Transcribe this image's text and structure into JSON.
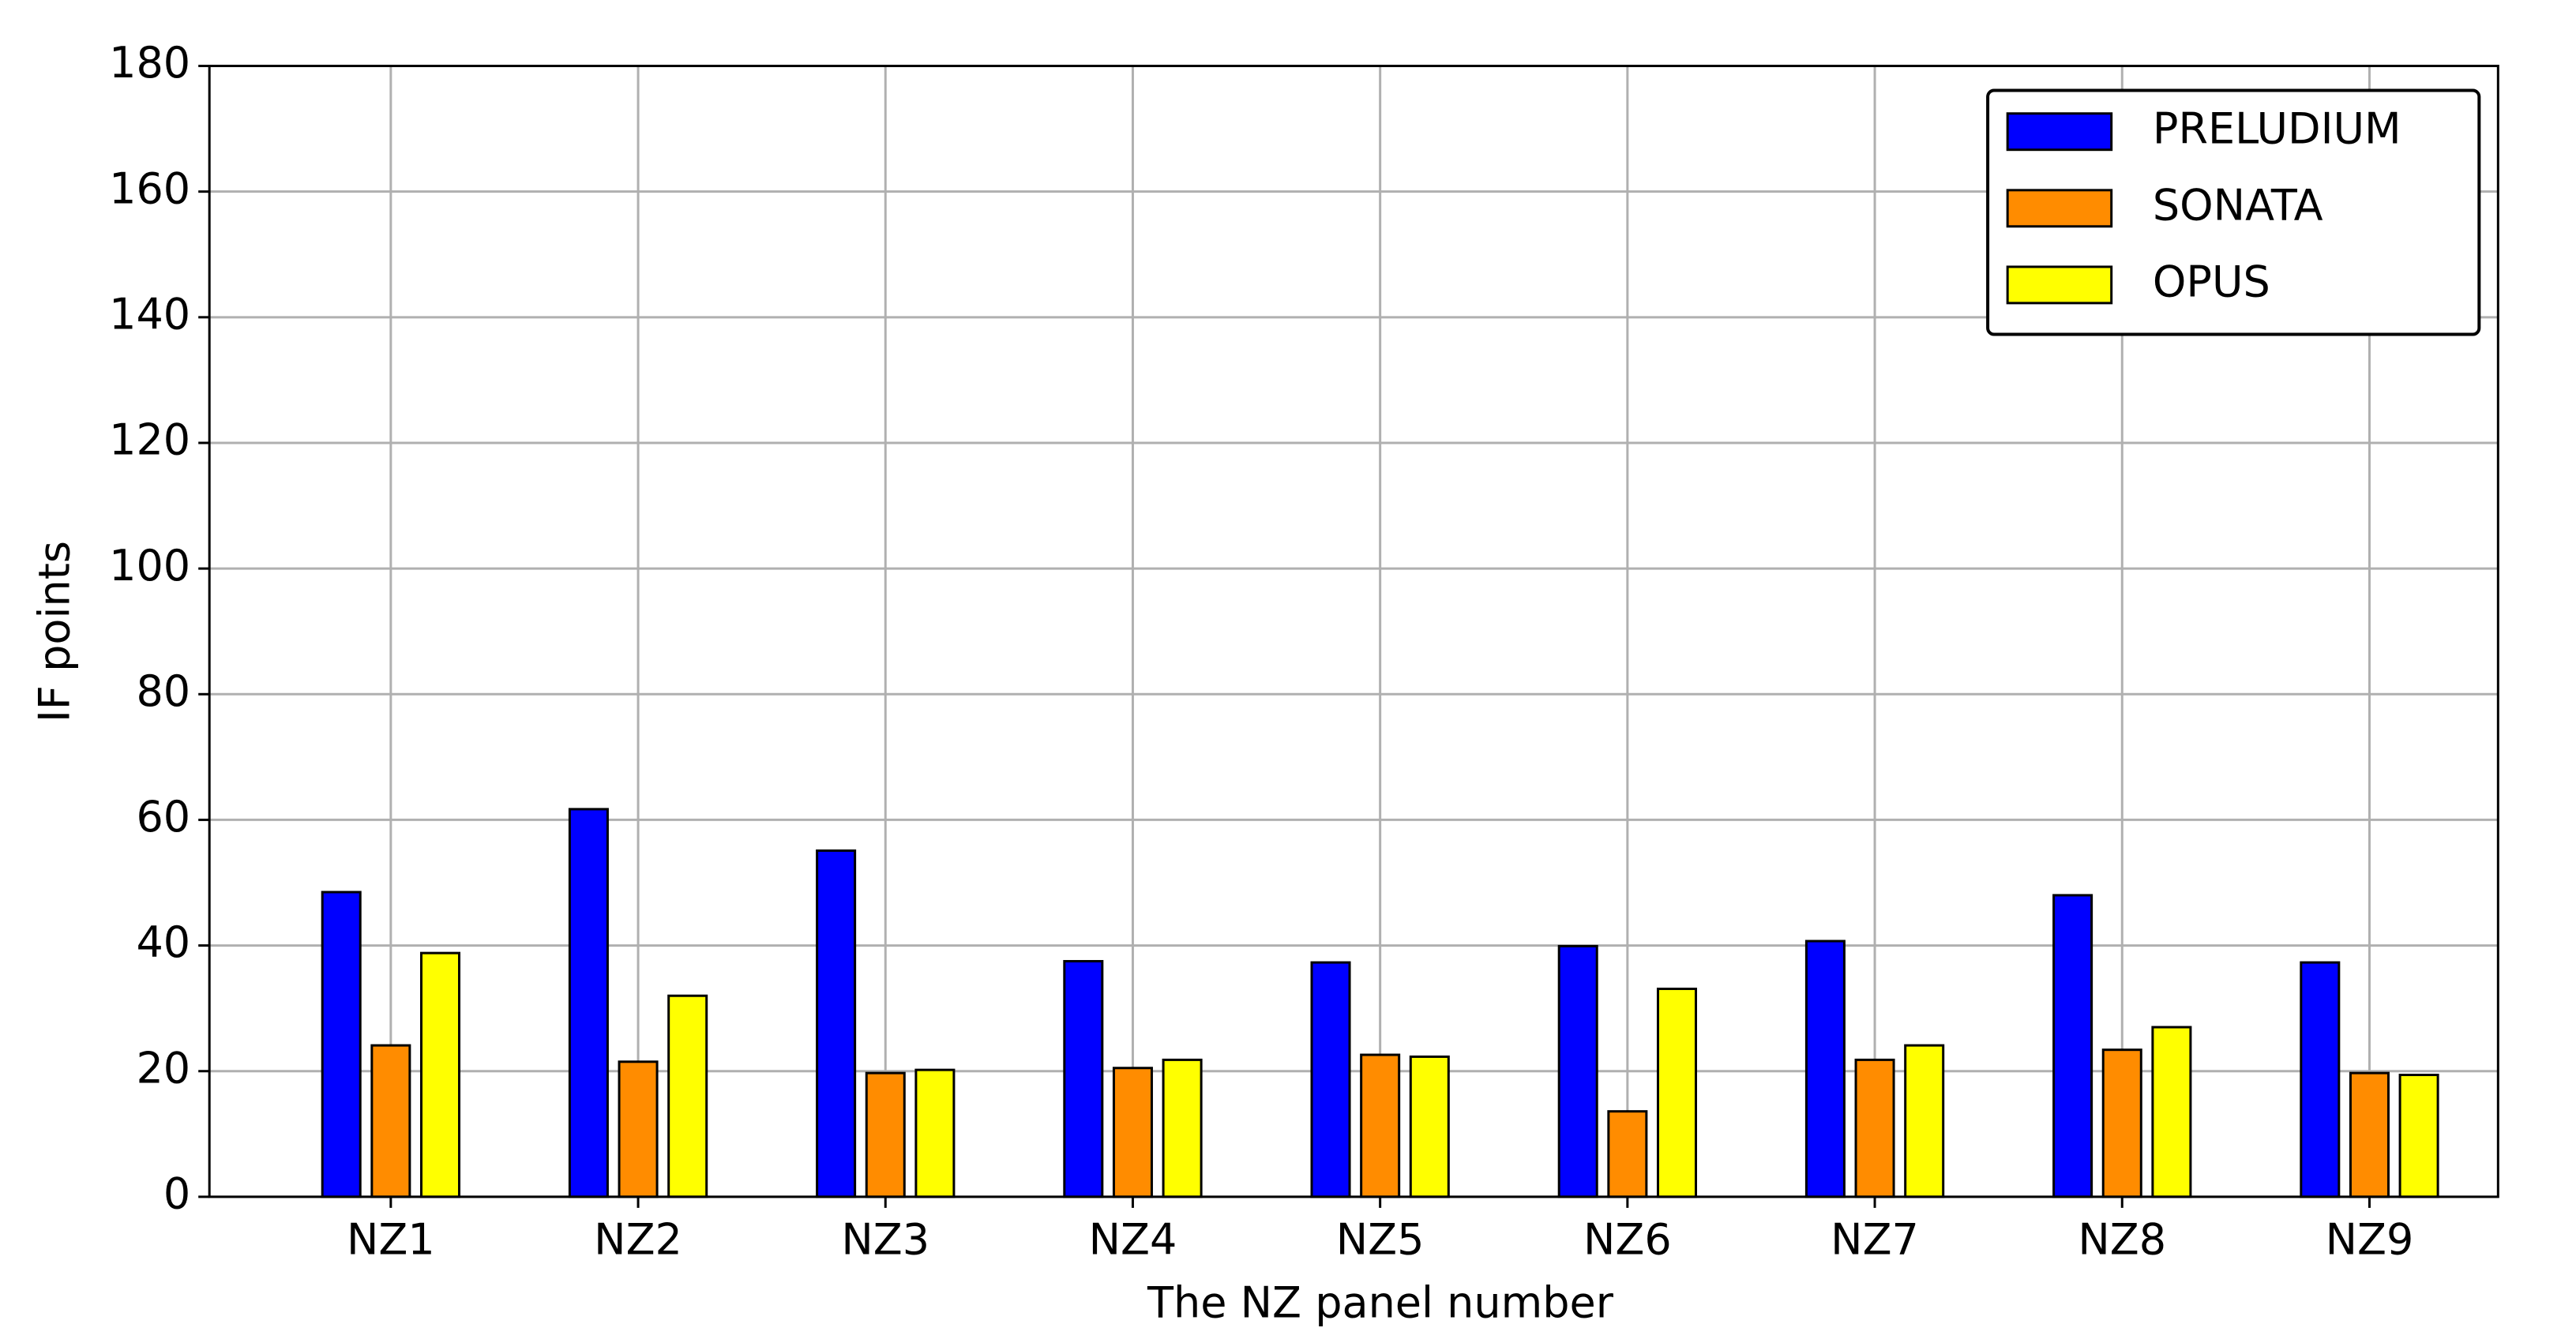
{
  "chart_data": {
    "type": "bar",
    "xlabel": "The NZ panel number",
    "ylabel": "IF points",
    "categories": [
      "NZ1",
      "NZ2",
      "NZ3",
      "NZ4",
      "NZ5",
      "NZ6",
      "NZ7",
      "NZ8",
      "NZ9"
    ],
    "series": [
      {
        "name": "PRELUDIUM",
        "color": "#0000ff",
        "values": [
          48.5,
          61.7,
          55.1,
          37.5,
          37.3,
          39.9,
          40.7,
          48,
          37.3
        ]
      },
      {
        "name": "SONATA",
        "color": "#ff8c00",
        "values": [
          24.1,
          21.5,
          19.7,
          20.5,
          22.6,
          13.6,
          21.8,
          23.4,
          19.7
        ]
      },
      {
        "name": "OPUS",
        "color": "#ffff00",
        "values": [
          38.8,
          32,
          20.2,
          21.8,
          22.3,
          33.1,
          24.1,
          27,
          19.4
        ]
      }
    ],
    "ylim": [
      0,
      180
    ],
    "yticks": [
      0,
      20,
      40,
      60,
      80,
      100,
      120,
      140,
      160,
      180
    ],
    "grid": true,
    "legend": "upper right"
  }
}
